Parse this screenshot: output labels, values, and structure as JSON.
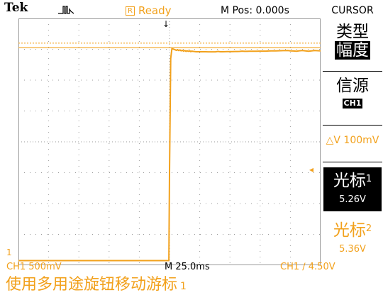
{
  "header": {
    "brand": "Tek",
    "acq_icon": "pulse-waveform-icon",
    "status_box": "R",
    "status": "Ready",
    "mpos": "M Pos: 0.000s",
    "menu_title": "CURSOR"
  },
  "menu": {
    "type_label": "类型",
    "type_value": "幅度",
    "source_label": "信源",
    "source_value": "CH1",
    "delta": "△V 100mV",
    "cursor1_label": "光标",
    "cursor1_index": "1",
    "cursor1_value": "5.26V",
    "cursor2_label": "光标",
    "cursor2_index": "2",
    "cursor2_value": "5.36V"
  },
  "readouts": {
    "ch1_scale": "CH1  500mV",
    "time_scale": "M 25.0ms",
    "trigger": "CH1 ∕ 4.50V"
  },
  "markers": {
    "trigger_top": "↓",
    "trigger_level": "◂",
    "channel": "1"
  },
  "hint": {
    "text": "使用多用途旋钮移动游标",
    "index": "1"
  },
  "colors": {
    "trace": "#f2a11c",
    "background": "#ffffff",
    "grid": "#9a9a9a"
  },
  "chart_data": {
    "type": "line",
    "title": "",
    "xlabel": "",
    "ylabel": "",
    "xlim": [
      -125,
      125
    ],
    "ylim": [
      -4,
      4
    ],
    "series": [
      {
        "x": [
          -125,
          -0.5,
          0,
          1,
          2,
          3,
          5,
          8,
          12,
          20,
          40,
          60,
          80,
          100,
          125
        ],
        "y": [
          -3.85,
          -3.85,
          -1.0,
          2.7,
          3.02,
          3.01,
          2.98,
          2.97,
          2.95,
          2.93,
          2.93,
          2.94,
          2.94,
          2.95,
          2.95
        ]
      }
    ],
    "cursor_levels": [
      3.2,
      3.05
    ]
  }
}
